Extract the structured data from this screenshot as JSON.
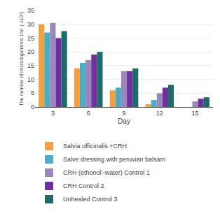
{
  "chart_data": {
    "type": "bar",
    "xlabel": "Day",
    "ylabel": "The number of microorganisms 1ml  ( x10⁶)",
    "categories": [
      "3",
      "6",
      "9",
      "12",
      "15"
    ],
    "series": [
      {
        "name": "Salvia officinalis +CRH",
        "color": "#F4A040",
        "values": [
          30,
          14,
          6,
          1,
          0
        ]
      },
      {
        "name": "Salve dressing with peruvian balsam",
        "color": "#4BACC6",
        "values": [
          27,
          16,
          7,
          2.5,
          0
        ]
      },
      {
        "name": "CRH (ethonol−water) Control 1",
        "color": "#9B86BD",
        "values": [
          30.5,
          17,
          13,
          5,
          2
        ]
      },
      {
        "name": "CRH Control 2",
        "color": "#7030A0",
        "values": [
          25,
          19,
          13,
          7,
          3
        ]
      },
      {
        "name": "Unhealed Control 3",
        "color": "#1F6B6B",
        "values": [
          27.5,
          20,
          14,
          8,
          3.5
        ]
      }
    ],
    "ylim": [
      0,
      35
    ],
    "yticks": [
      0,
      5,
      10,
      15,
      20,
      25,
      30,
      35
    ],
    "grid": true,
    "legend": "bottom"
  }
}
